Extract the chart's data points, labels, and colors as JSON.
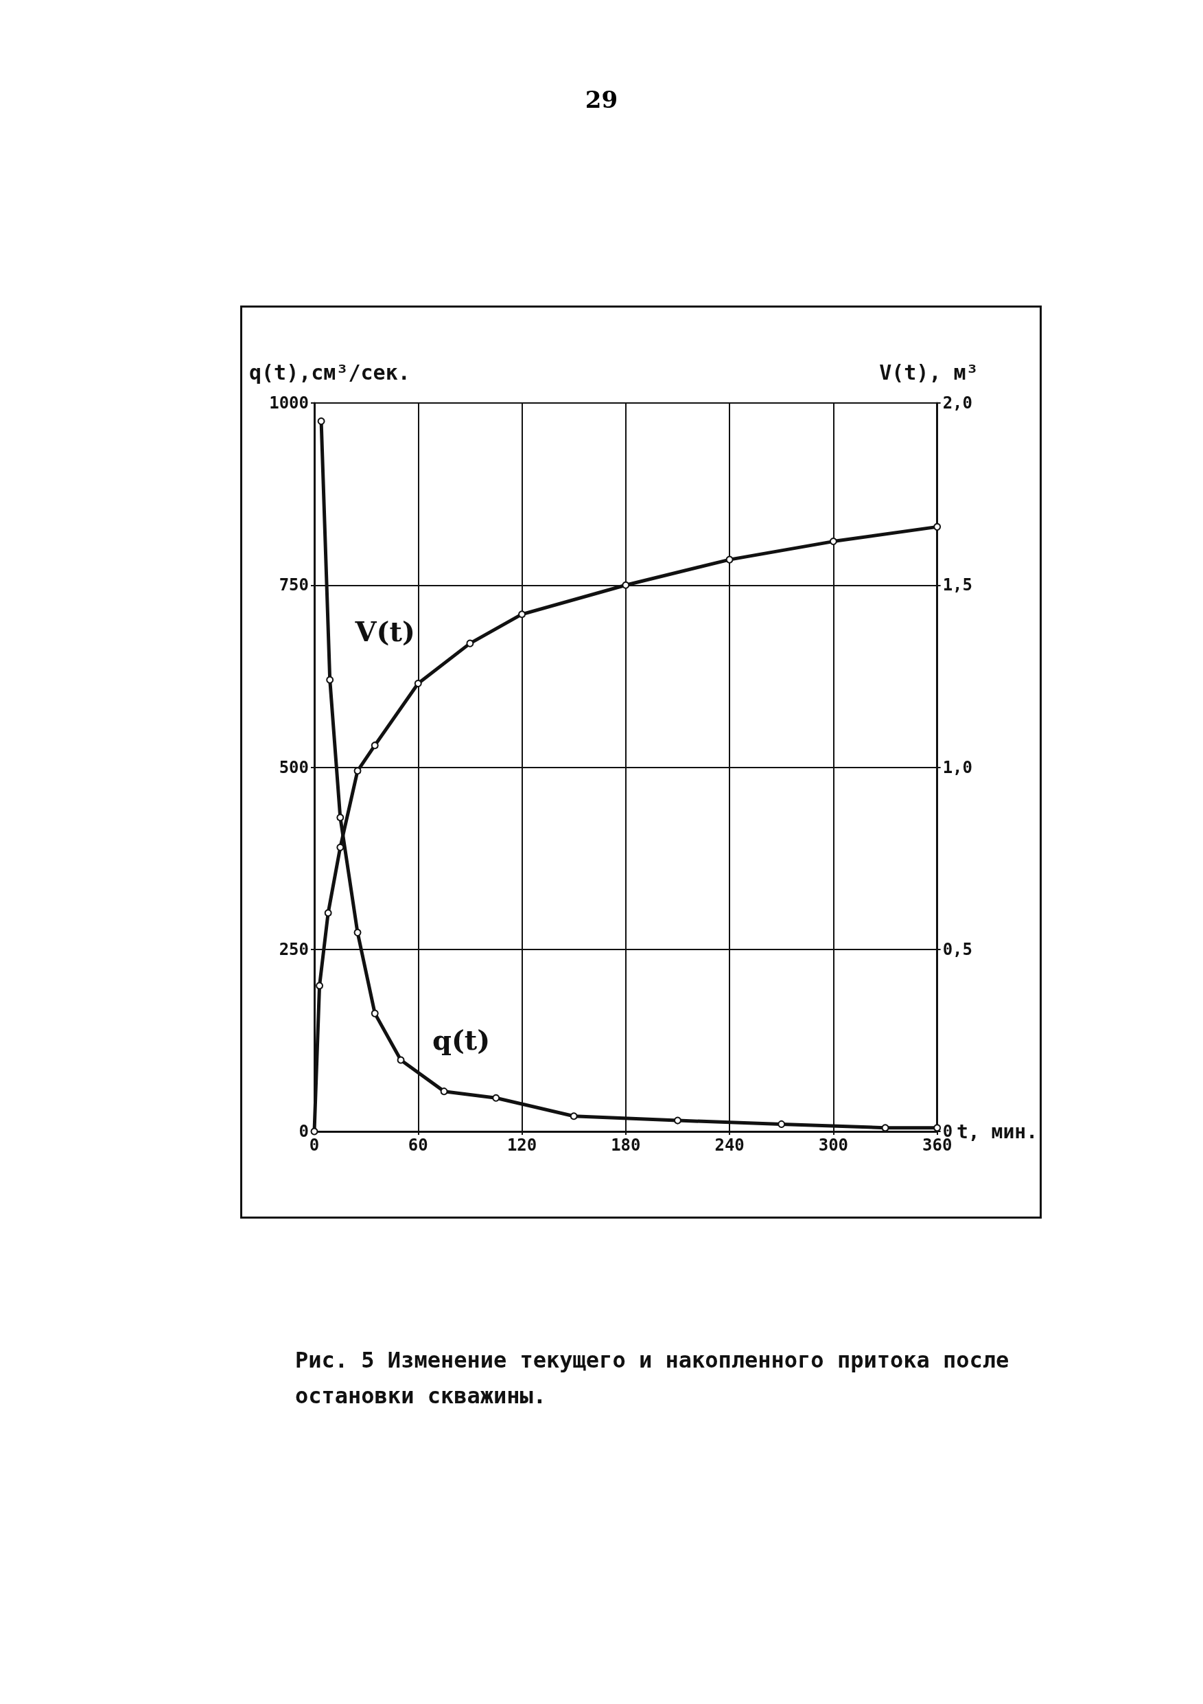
{
  "chart_data": {
    "type": "line",
    "title": "Рис. 5 Изменение текущего и накопленного притока после остановки скважины.",
    "annotations": [
      "29"
    ],
    "xlabel": "t, мин.",
    "ylabel": "q(t),см³/сек.",
    "y2label": "V(t), м³",
    "xlim": [
      0,
      360
    ],
    "xticks": [
      0,
      60,
      120,
      180,
      240,
      300,
      360
    ],
    "ylim": [
      0,
      1000
    ],
    "yticks": [
      0,
      250,
      500,
      750,
      1000
    ],
    "y2lim": [
      0,
      2
    ],
    "y2ticks": [
      0,
      {
        "value": 0.5,
        "label": "0,5"
      },
      {
        "value": 1,
        "label": "1,0"
      },
      {
        "value": 1.5,
        "label": "1,5"
      },
      {
        "value": 2,
        "label": "2,0"
      }
    ],
    "grid": true,
    "legend": false,
    "marker": "circle",
    "line_style": "solid",
    "series": [
      {
        "name": "q(t)",
        "color": "#111111",
        "x": [
          4,
          9,
          15,
          25,
          35,
          50,
          75,
          105,
          150,
          210,
          270,
          330,
          360
        ],
        "values": [
          975,
          620,
          431,
          273,
          162,
          98,
          55,
          46,
          21,
          15,
          10,
          5,
          5
        ]
      },
      {
        "name": "V(t)",
        "color": "#111111",
        "axis": "y2",
        "x": [
          0,
          3,
          8,
          15,
          25,
          35,
          60,
          90,
          120,
          180,
          240,
          300,
          360
        ],
        "values": [
          0,
          0.4,
          0.6,
          0.78,
          0.99,
          1.06,
          1.23,
          1.34,
          1.42,
          1.5,
          1.57,
          1.62,
          1.66
        ]
      }
    ]
  }
}
